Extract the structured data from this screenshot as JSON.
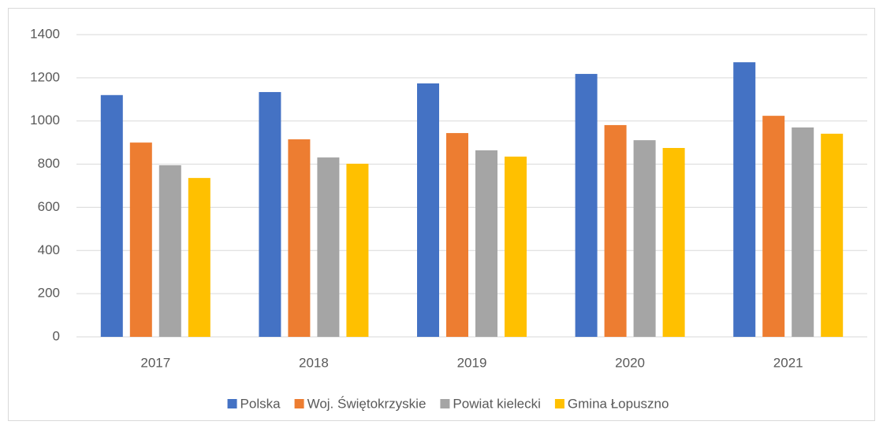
{
  "chart_data": {
    "type": "bar",
    "categories": [
      "2017",
      "2018",
      "2019",
      "2020",
      "2021"
    ],
    "series": [
      {
        "name": "Polska",
        "color": "#4472c4",
        "values": [
          1120,
          1134,
          1174,
          1218,
          1272
        ]
      },
      {
        "name": "Woj. Świętokrzyskie",
        "color": "#ed7d31",
        "values": [
          900,
          915,
          944,
          981,
          1024
        ]
      },
      {
        "name": "Powiat kielecki",
        "color": "#a5a5a5",
        "values": [
          795,
          831,
          864,
          911,
          970
        ]
      },
      {
        "name": "Gmina Łopuszno",
        "color": "#ffc000",
        "values": [
          736,
          802,
          835,
          875,
          941
        ]
      }
    ],
    "ylim": [
      0,
      1400
    ],
    "yticks": [
      0,
      200,
      400,
      600,
      800,
      1000,
      1200,
      1400
    ],
    "grid": true,
    "legend": "bottom"
  }
}
